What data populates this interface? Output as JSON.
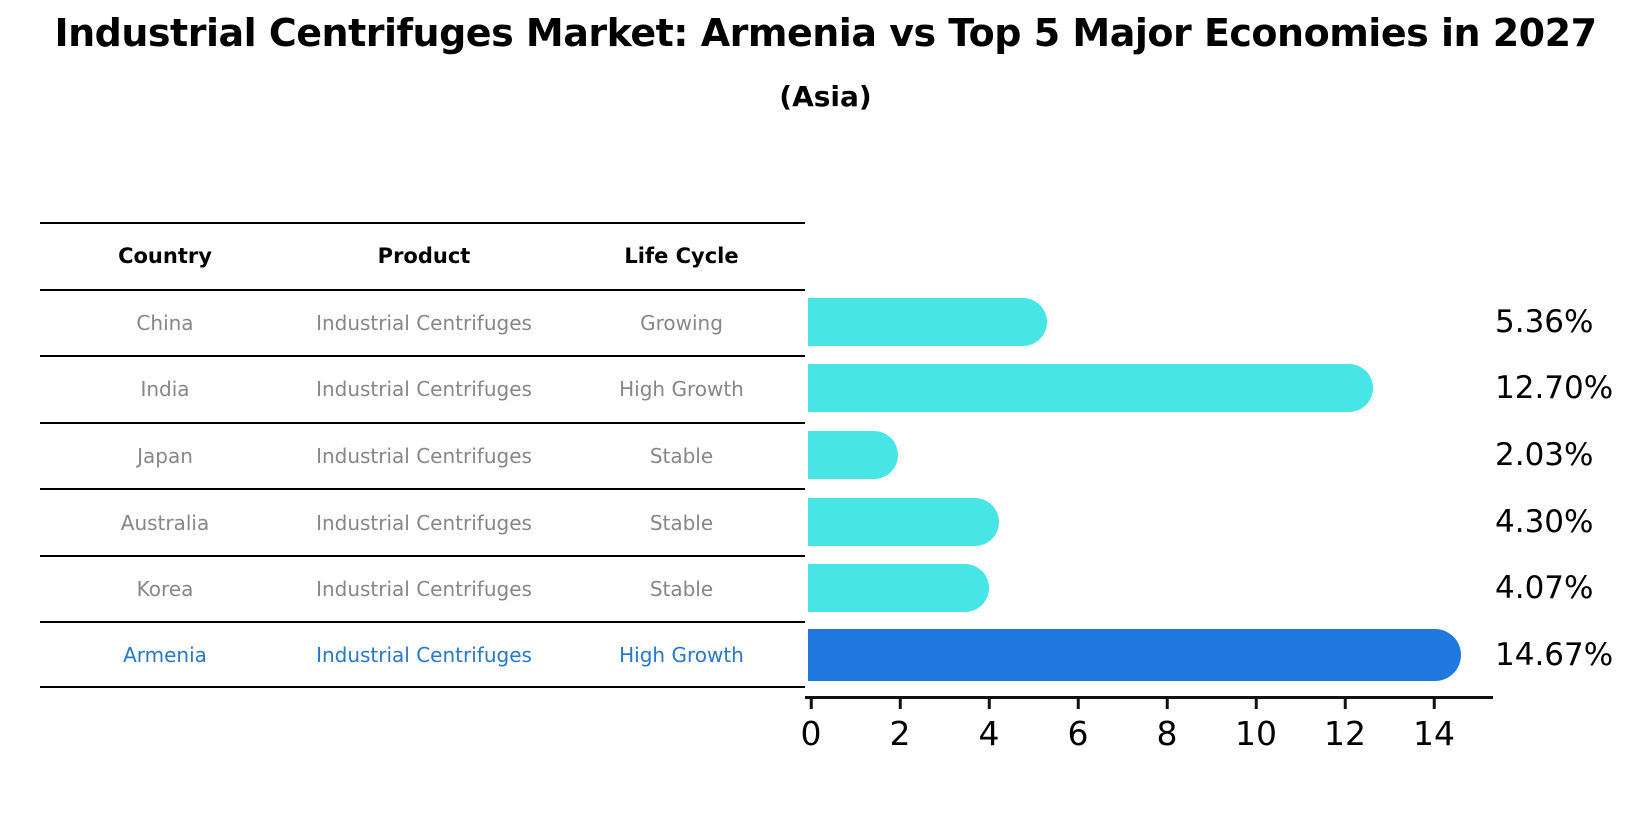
{
  "title": "Industrial Centrifuges Market: Armenia vs Top 5 Major Economies in 2027",
  "subtitle": "(Asia)",
  "table": {
    "headers": {
      "country": "Country",
      "product": "Product",
      "life_cycle": "Life Cycle"
    },
    "rows": [
      {
        "country": "China",
        "product": "Industrial Centrifuges",
        "life_cycle": "Growing",
        "highlight": false
      },
      {
        "country": "India",
        "product": "Industrial Centrifuges",
        "life_cycle": "High Growth",
        "highlight": false
      },
      {
        "country": "Japan",
        "product": "Industrial Centrifuges",
        "life_cycle": "Stable",
        "highlight": false
      },
      {
        "country": "Australia",
        "product": "Industrial Centrifuges",
        "life_cycle": "Stable",
        "highlight": false
      },
      {
        "country": "Korea",
        "product": "Industrial Centrifuges",
        "life_cycle": "Stable",
        "highlight": false
      },
      {
        "country": "Armenia",
        "product": "Industrial Centrifuges",
        "life_cycle": "High Growth",
        "highlight": true
      }
    ]
  },
  "chart_data": {
    "type": "bar",
    "orientation": "horizontal",
    "title": "Industrial Centrifuges Market: Armenia vs Top 5 Major Economies in 2027",
    "subtitle": "(Asia)",
    "categories": [
      "China",
      "India",
      "Japan",
      "Australia",
      "Korea",
      "Armenia"
    ],
    "values": [
      5.36,
      12.7,
      2.03,
      4.3,
      4.07,
      14.67
    ],
    "value_labels": [
      "5.36%",
      "12.70%",
      "2.03%",
      "4.30%",
      "4.07%",
      "14.67%"
    ],
    "x_ticks": [
      0,
      2,
      4,
      6,
      8,
      10,
      12,
      14
    ],
    "xlim": [
      0,
      15.4
    ],
    "grid": false,
    "legend": "none",
    "highlight_index": 5,
    "colors": {
      "bar": "#48e5e6",
      "highlight_bar": "#1e78e0",
      "highlight_border": "#1e78e0",
      "table_text": "#878787",
      "table_highlight_text": "#2878c8",
      "axis": "#111111",
      "title_text": "#000000"
    }
  }
}
